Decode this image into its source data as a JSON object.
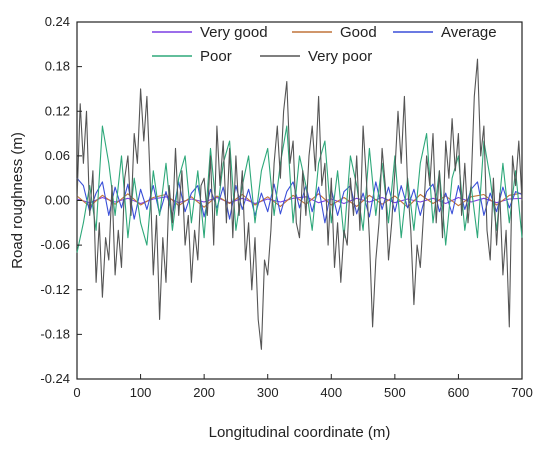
{
  "chart_data": {
    "type": "line",
    "xlabel": "Longitudinal coordinate (m)",
    "ylabel": "Road roughness (m)",
    "xlim": [
      0,
      700
    ],
    "ylim": [
      -0.24,
      0.24
    ],
    "xticks": [
      0,
      100,
      200,
      300,
      400,
      500,
      600,
      700
    ],
    "yticks": [
      "-0.24",
      "-0.18",
      "-0.12",
      "-0.06",
      "0.00",
      "0.06",
      "0.12",
      "0.18",
      "0.24"
    ],
    "legend_placement": "top",
    "grid": false,
    "series": [
      {
        "name": "Very good",
        "color": "#7b3fe4",
        "x": [
          0,
          20,
          40,
          60,
          80,
          100,
          120,
          140,
          160,
          180,
          200,
          220,
          240,
          260,
          280,
          300,
          320,
          340,
          360,
          380,
          400,
          420,
          440,
          460,
          480,
          500,
          520,
          540,
          560,
          580,
          600,
          620,
          640,
          660,
          680,
          700
        ],
        "values": [
          0.002,
          -0.003,
          0.004,
          -0.002,
          0.003,
          -0.004,
          0.002,
          0.005,
          -0.003,
          0.002,
          -0.002,
          0.004,
          -0.003,
          0.003,
          -0.004,
          0.002,
          -0.002,
          0.003,
          0.005,
          -0.003,
          0.002,
          -0.004,
          0.003,
          -0.002,
          0.004,
          -0.003,
          0.002,
          -0.002,
          0.003,
          -0.004,
          0.004,
          -0.002,
          0.003,
          -0.003,
          0.002,
          0.003
        ]
      },
      {
        "name": "Good",
        "color": "#c0743a",
        "x": [
          0,
          20,
          40,
          60,
          80,
          100,
          120,
          140,
          160,
          180,
          200,
          220,
          240,
          260,
          280,
          300,
          320,
          340,
          360,
          380,
          400,
          420,
          440,
          460,
          480,
          500,
          520,
          540,
          560,
          580,
          600,
          620,
          640,
          660,
          680,
          700
        ],
        "values": [
          0.006,
          -0.008,
          0.007,
          -0.005,
          0.009,
          -0.006,
          0.004,
          0.008,
          -0.007,
          0.005,
          -0.009,
          0.006,
          -0.004,
          0.008,
          -0.006,
          0.005,
          -0.008,
          0.007,
          -0.005,
          0.009,
          -0.006,
          0.004,
          -0.008,
          0.007,
          -0.005,
          0.006,
          -0.009,
          0.008,
          -0.004,
          0.006,
          -0.007,
          0.005,
          0.008,
          -0.006,
          0.007,
          0.01
        ]
      },
      {
        "name": "Average",
        "color": "#3a4fd8",
        "x": [
          0,
          10,
          20,
          30,
          40,
          50,
          60,
          70,
          80,
          90,
          100,
          110,
          120,
          130,
          140,
          150,
          160,
          170,
          180,
          190,
          200,
          210,
          220,
          230,
          240,
          250,
          260,
          270,
          280,
          290,
          300,
          310,
          320,
          330,
          340,
          350,
          360,
          370,
          380,
          390,
          400,
          410,
          420,
          430,
          440,
          450,
          460,
          470,
          480,
          490,
          500,
          510,
          520,
          530,
          540,
          550,
          560,
          570,
          580,
          590,
          600,
          610,
          620,
          630,
          640,
          650,
          660,
          670,
          680,
          690,
          700
        ],
        "values": [
          0.03,
          0.02,
          -0.015,
          0.01,
          0.025,
          -0.02,
          0.018,
          -0.01,
          0.022,
          -0.025,
          0.015,
          -0.012,
          0.02,
          -0.018,
          0.012,
          -0.02,
          0.025,
          -0.015,
          0.01,
          0.02,
          -0.022,
          0.015,
          -0.01,
          0.018,
          -0.025,
          0.02,
          -0.012,
          0.015,
          -0.02,
          0.01,
          -0.015,
          0.022,
          -0.018,
          0.012,
          0.025,
          -0.01,
          0.02,
          -0.015,
          0.018,
          -0.03,
          0.015,
          -0.02,
          0.012,
          0.02,
          -0.018,
          0.01,
          -0.022,
          0.025,
          -0.012,
          0.018,
          -0.015,
          0.02,
          -0.01,
          0.015,
          -0.02,
          0.012,
          0.022,
          -0.015,
          0.01,
          -0.018,
          0.02,
          -0.012,
          0.015,
          0.025,
          -0.02,
          0.01,
          -0.015,
          0.018,
          -0.01,
          0.012,
          0.008
        ]
      },
      {
        "name": "Poor",
        "color": "#2ea87a",
        "x": [
          0,
          10,
          20,
          30,
          40,
          50,
          60,
          70,
          80,
          90,
          100,
          110,
          120,
          130,
          140,
          150,
          160,
          170,
          180,
          190,
          200,
          210,
          220,
          230,
          240,
          250,
          260,
          270,
          280,
          290,
          300,
          310,
          320,
          330,
          340,
          350,
          360,
          370,
          380,
          390,
          400,
          410,
          420,
          430,
          440,
          450,
          460,
          470,
          480,
          490,
          500,
          510,
          520,
          530,
          540,
          550,
          560,
          570,
          580,
          590,
          600,
          610,
          620,
          630,
          640,
          650,
          660,
          670,
          680,
          690,
          700
        ],
        "values": [
          -0.07,
          -0.03,
          0.02,
          -0.04,
          0.1,
          0.05,
          -0.02,
          0.06,
          -0.05,
          0.03,
          -0.03,
          -0.06,
          0.04,
          -0.02,
          0.05,
          -0.04,
          0.03,
          0.06,
          -0.03,
          0.04,
          -0.05,
          0.07,
          -0.02,
          0.05,
          0.08,
          -0.04,
          0.02,
          0.06,
          -0.03,
          0.04,
          0.07,
          -0.02,
          0.05,
          0.1,
          -0.03,
          0.06,
          0.02,
          -0.04,
          0.05,
          0.08,
          -0.03,
          0.04,
          -0.05,
          0.06,
          0.02,
          -0.04,
          0.07,
          -0.02,
          0.05,
          -0.03,
          0.06,
          -0.05,
          0.03,
          -0.04,
          0.05,
          0.09,
          -0.03,
          0.04,
          -0.06,
          0.03,
          0.06,
          -0.04,
          0.02,
          -0.05,
          0.08,
          0.03,
          -0.04,
          0.05,
          -0.03,
          0.04,
          -0.05
        ]
      },
      {
        "name": "Very poor",
        "color": "#555555",
        "x": [
          0,
          5,
          10,
          15,
          20,
          25,
          30,
          35,
          40,
          45,
          50,
          55,
          60,
          65,
          70,
          75,
          80,
          85,
          90,
          95,
          100,
          105,
          110,
          115,
          120,
          125,
          130,
          135,
          140,
          145,
          150,
          155,
          160,
          165,
          170,
          175,
          180,
          185,
          190,
          195,
          200,
          205,
          210,
          215,
          220,
          225,
          230,
          235,
          240,
          245,
          250,
          255,
          260,
          265,
          270,
          275,
          280,
          285,
          290,
          295,
          300,
          305,
          310,
          315,
          320,
          325,
          330,
          335,
          340,
          345,
          350,
          355,
          360,
          365,
          370,
          375,
          380,
          385,
          390,
          395,
          400,
          405,
          410,
          415,
          420,
          425,
          430,
          435,
          440,
          445,
          450,
          455,
          460,
          465,
          470,
          475,
          480,
          485,
          490,
          495,
          500,
          505,
          510,
          515,
          520,
          525,
          530,
          535,
          540,
          545,
          550,
          555,
          560,
          565,
          570,
          575,
          580,
          585,
          590,
          595,
          600,
          605,
          610,
          615,
          620,
          625,
          630,
          635,
          640,
          645,
          650,
          655,
          660,
          665,
          670,
          675,
          680,
          685,
          690,
          695,
          700
        ],
        "values": [
          0.0,
          0.13,
          0.05,
          0.12,
          -0.02,
          0.04,
          -0.11,
          -0.03,
          -0.13,
          -0.05,
          -0.08,
          0.02,
          -0.1,
          -0.04,
          -0.09,
          0.03,
          0.06,
          -0.02,
          0.09,
          0.05,
          0.15,
          0.08,
          0.14,
          0.03,
          -0.1,
          -0.02,
          -0.16,
          -0.05,
          -0.11,
          0.02,
          -0.03,
          0.07,
          -0.02,
          0.04,
          -0.06,
          -0.02,
          -0.11,
          -0.04,
          -0.08,
          0.02,
          0.03,
          -0.02,
          0.06,
          -0.06,
          0.1,
          0.02,
          0.08,
          -0.03,
          0.07,
          -0.05,
          0.06,
          -0.02,
          0.04,
          -0.08,
          -0.03,
          -0.12,
          -0.05,
          -0.16,
          -0.2,
          -0.08,
          -0.1,
          -0.04,
          0.05,
          0.1,
          0.03,
          0.12,
          0.16,
          0.05,
          0.08,
          -0.03,
          -0.05,
          0.04,
          -0.02,
          0.06,
          0.1,
          0.04,
          0.14,
          0.02,
          0.05,
          -0.06,
          0.03,
          -0.09,
          -0.03,
          -0.11,
          -0.04,
          -0.06,
          0.03,
          -0.02,
          0.06,
          -0.04,
          0.1,
          0.03,
          -0.05,
          -0.17,
          -0.08,
          -0.03,
          0.07,
          0.02,
          -0.08,
          -0.03,
          0.04,
          0.12,
          0.05,
          0.14,
          0.02,
          -0.04,
          -0.14,
          -0.06,
          -0.09,
          -0.02,
          0.06,
          0.02,
          0.09,
          -0.03,
          0.04,
          -0.05,
          0.08,
          0.03,
          0.11,
          0.04,
          0.09,
          -0.02,
          0.05,
          -0.03,
          0.02,
          0.14,
          0.19,
          0.06,
          0.1,
          -0.04,
          -0.08,
          0.03,
          -0.06,
          0.01,
          -0.1,
          -0.04,
          -0.17,
          0.06,
          0.02,
          0.08,
          0.0
        ]
      }
    ]
  }
}
